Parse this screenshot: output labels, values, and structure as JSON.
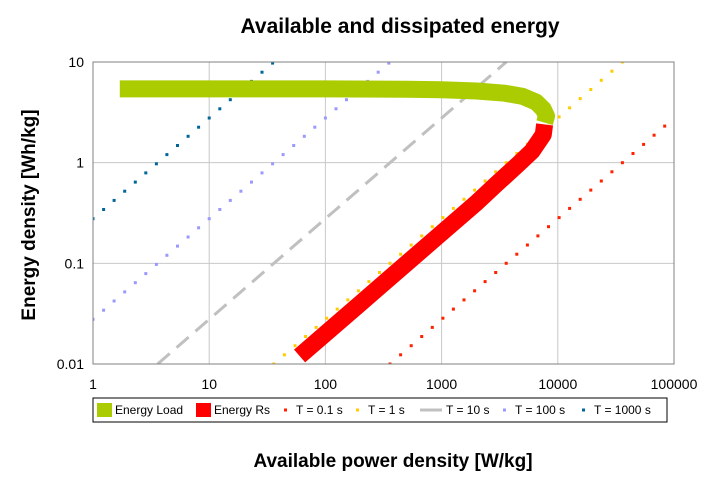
{
  "chart_data": {
    "type": "scatter",
    "title": "Available and dissipated energy",
    "xlabel": "Available power density [W/kg]",
    "ylabel": "Energy density [Wh/kg]",
    "x_scale": "log",
    "y_scale": "log",
    "xlim": [
      1,
      100000
    ],
    "ylim": [
      0.01,
      10
    ],
    "x_ticks": [
      "1",
      "10",
      "100",
      "1000",
      "10000",
      "100000"
    ],
    "y_ticks": [
      "0.01",
      "0.1",
      "1",
      "10"
    ],
    "grid": true,
    "legend_position": "bottom",
    "series": [
      {
        "name": "Energy Load",
        "color": "#aacc00",
        "style": "thick-line",
        "x": [
          1.7,
          10,
          100,
          500,
          1000,
          2000,
          3500,
          5000,
          6500,
          7500,
          8000,
          7700
        ],
        "y": [
          5.4,
          5.4,
          5.4,
          5.35,
          5.3,
          5.15,
          4.9,
          4.55,
          4.0,
          3.4,
          2.9,
          2.5
        ]
      },
      {
        "name": "Energy Rs",
        "color": "#ff0000",
        "style": "thick-line",
        "x": [
          60,
          100,
          200,
          500,
          1000,
          2000,
          3000,
          4500,
          6000,
          7500,
          7700
        ],
        "y": [
          0.012,
          0.02,
          0.04,
          0.1,
          0.2,
          0.4,
          0.62,
          0.95,
          1.3,
          1.9,
          2.4
        ]
      },
      {
        "name": "T = 0.1 s",
        "color": "#ff2200",
        "style": "dots",
        "T": 0.1,
        "x_range": [
          360,
          100000
        ]
      },
      {
        "name": "T = 1 s",
        "color": "#ffcc00",
        "style": "dots",
        "T": 1,
        "x_range": [
          36,
          36000
        ]
      },
      {
        "name": "T = 10 s",
        "color": "#c0c0c0",
        "style": "dash",
        "T": 10,
        "x_range": [
          3.6,
          3600
        ]
      },
      {
        "name": "T = 100 s",
        "color": "#9999ff",
        "style": "dots",
        "T": 100,
        "x_range": [
          1,
          360
        ]
      },
      {
        "name": "T = 1000 s",
        "color": "#006699",
        "style": "dots",
        "T": 1000,
        "x_range": [
          1,
          36
        ]
      }
    ]
  }
}
